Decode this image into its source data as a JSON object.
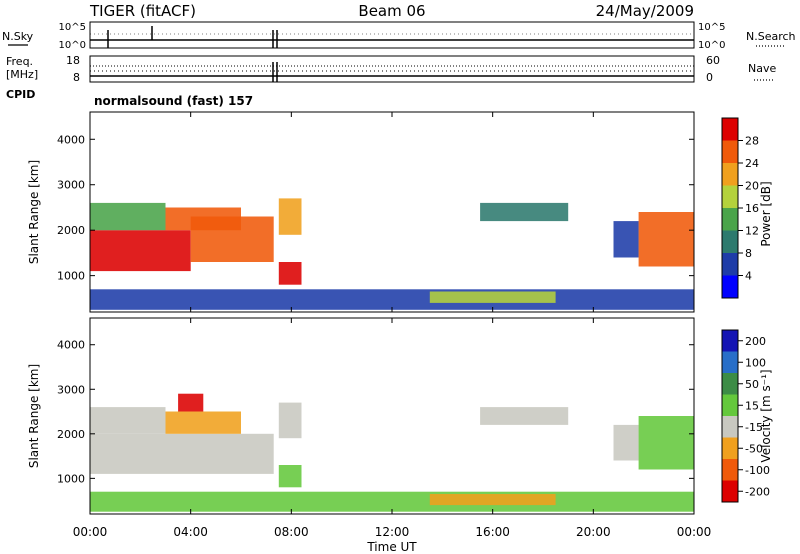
{
  "header": {
    "radar": "TIGER (fitACF)",
    "beam": "Beam 06",
    "date": "24/May/2009"
  },
  "panels": {
    "nsky_label": "N.Sky",
    "nsearch_label": "N.Search",
    "noise_ticks": [
      "10^5",
      "10^0"
    ],
    "freq_label_1": "Freq.",
    "freq_label_2": "[MHz]",
    "freq_ticks": [
      "18",
      "8"
    ],
    "nave_label": "Nave",
    "nave_ticks": [
      "60",
      "0"
    ],
    "cpid_label": "CPID",
    "cpid_value": "normalsound (fast) 157"
  },
  "colors": {
    "power": [
      "#0000ff",
      "#1e3ca8",
      "#2d7a6e",
      "#4aa44a",
      "#b4d23c",
      "#f0a01e",
      "#f05a0a",
      "#dc0000"
    ],
    "velocity": [
      "#1414b4",
      "#286ec8",
      "#3c8c46",
      "#64c83c",
      "#c8c8c0",
      "#f0a01e",
      "#f05a0a",
      "#dc0000"
    ]
  },
  "chart_data": [
    {
      "type": "heatmap",
      "quantity": "power",
      "ylabel": "Slant Range [km]",
      "yticks": [
        1000,
        2000,
        3000,
        4000
      ],
      "ylim": [
        200,
        4600
      ],
      "xlim": [
        0,
        24
      ],
      "colorbar": {
        "label": "Power [dB]",
        "ticks": [
          "4",
          "8",
          "12",
          "16",
          "20",
          "24",
          "28"
        ]
      },
      "bands": [
        {
          "t0": 0.0,
          "t1": 4.0,
          "r0": 1100,
          "r1": 2000,
          "level": 7
        },
        {
          "t0": 4.0,
          "t1": 7.3,
          "r0": 1300,
          "r1": 2300,
          "level": 6
        },
        {
          "t0": 3.0,
          "t1": 6.0,
          "r0": 2000,
          "r1": 2500,
          "level": 6
        },
        {
          "t0": 0.0,
          "t1": 3.0,
          "r0": 2000,
          "r1": 2600,
          "level": 3
        },
        {
          "t0": 7.5,
          "t1": 8.4,
          "r0": 800,
          "r1": 1300,
          "level": 7
        },
        {
          "t0": 7.5,
          "t1": 8.4,
          "r0": 1900,
          "r1": 2700,
          "level": 5
        },
        {
          "t0": 15.5,
          "t1": 19.0,
          "r0": 2200,
          "r1": 2600,
          "level": 2
        },
        {
          "t0": 20.8,
          "t1": 21.8,
          "r0": 1400,
          "r1": 2200,
          "level": 1
        },
        {
          "t0": 21.8,
          "t1": 24.0,
          "r0": 1200,
          "r1": 2400,
          "level": 6
        },
        {
          "t0": 0.0,
          "t1": 24.0,
          "r0": 250,
          "r1": 700,
          "level": 1
        },
        {
          "t0": 13.5,
          "t1": 18.5,
          "r0": 400,
          "r1": 650,
          "level": 4
        }
      ]
    },
    {
      "type": "heatmap",
      "quantity": "velocity",
      "xlabel": "Time UT",
      "ylabel": "Slant Range [km]",
      "xticks": [
        "00:00",
        "04:00",
        "08:00",
        "12:00",
        "16:00",
        "20:00",
        "00:00"
      ],
      "yticks": [
        1000,
        2000,
        3000,
        4000
      ],
      "ylim": [
        200,
        4600
      ],
      "xlim": [
        0,
        24
      ],
      "colorbar": {
        "label": "Velocity [m s⁻¹]",
        "ticks": [
          "200",
          "100",
          "50",
          "15",
          "-15",
          "-50",
          "-100",
          "-200"
        ]
      },
      "bands": [
        {
          "t0": 0.0,
          "t1": 7.3,
          "r0": 1100,
          "r1": 2000,
          "level": 4
        },
        {
          "t0": 3.0,
          "t1": 6.0,
          "r0": 2000,
          "r1": 2500,
          "level": 5
        },
        {
          "t0": 3.5,
          "t1": 4.5,
          "r0": 2500,
          "r1": 2900,
          "level": 7
        },
        {
          "t0": 0.0,
          "t1": 3.0,
          "r0": 2000,
          "r1": 2600,
          "level": 4
        },
        {
          "t0": 7.5,
          "t1": 8.4,
          "r0": 800,
          "r1": 1300,
          "level": 3
        },
        {
          "t0": 7.5,
          "t1": 8.4,
          "r0": 1900,
          "r1": 2700,
          "level": 4
        },
        {
          "t0": 15.5,
          "t1": 19.0,
          "r0": 2200,
          "r1": 2600,
          "level": 4
        },
        {
          "t0": 20.8,
          "t1": 21.8,
          "r0": 1400,
          "r1": 2200,
          "level": 4
        },
        {
          "t0": 21.8,
          "t1": 24.0,
          "r0": 1200,
          "r1": 2400,
          "level": 3
        },
        {
          "t0": 0.0,
          "t1": 24.0,
          "r0": 250,
          "r1": 700,
          "level": 3
        },
        {
          "t0": 13.5,
          "t1": 18.5,
          "r0": 400,
          "r1": 650,
          "level": 5
        }
      ]
    }
  ]
}
